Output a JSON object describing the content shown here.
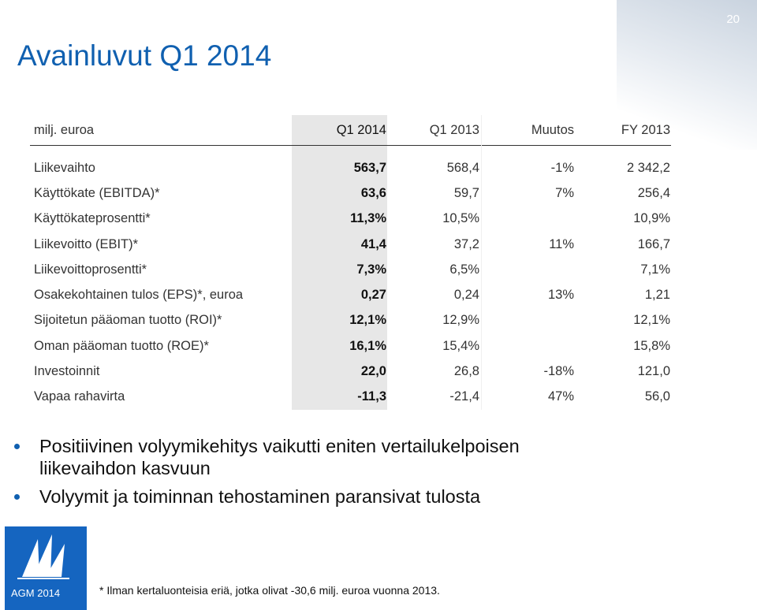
{
  "page_number": "20",
  "title": "Avainluvut Q1 2014",
  "table": {
    "header": {
      "label": "milj. euroa",
      "q1_2014": "Q1 2014",
      "q1_2013": "Q1 2013",
      "change": "Muutos",
      "fy_2013": "FY 2013"
    },
    "rows": [
      {
        "label": "Liikevaihto",
        "q1_2014": "563,7",
        "q1_2013": "568,4",
        "change": "-1%",
        "fy_2013": "2 342,2"
      },
      {
        "label": "Käyttökate (EBITDA)*",
        "q1_2014": "63,6",
        "q1_2013": "59,7",
        "change": "7%",
        "fy_2013": "256,4"
      },
      {
        "label": "Käyttökateprosentti*",
        "q1_2014": "11,3%",
        "q1_2013": "10,5%",
        "change": "",
        "fy_2013": "10,9%"
      },
      {
        "label": "Liikevoitto (EBIT)*",
        "q1_2014": "41,4",
        "q1_2013": "37,2",
        "change": "11%",
        "fy_2013": "166,7"
      },
      {
        "label": "Liikevoittoprosentti*",
        "q1_2014": "7,3%",
        "q1_2013": "6,5%",
        "change": "",
        "fy_2013": "7,1%"
      },
      {
        "label": "Osakekohtainen tulos (EPS)*, euroa",
        "q1_2014": "0,27",
        "q1_2013": "0,24",
        "change": "13%",
        "fy_2013": "1,21"
      },
      {
        "label": "Sijoitetun pääoman tuotto (ROI)*",
        "q1_2014": "12,1%",
        "q1_2013": "12,9%",
        "change": "",
        "fy_2013": "12,1%"
      },
      {
        "label": "Oman pääoman  tuotto (ROE)*",
        "q1_2014": "16,1%",
        "q1_2013": "15,4%",
        "change": "",
        "fy_2013": "15,8%"
      },
      {
        "label": "Investoinnit",
        "q1_2014": "22,0",
        "q1_2013": "26,8",
        "change": "-18%",
        "fy_2013": "121,0"
      },
      {
        "label": "Vapaa rahavirta",
        "q1_2014": "-11,3",
        "q1_2013": "-21,4",
        "change": "47%",
        "fy_2013": "56,0"
      }
    ]
  },
  "bullets": [
    "Positiivinen volyymikehitys vaikutti eniten vertailukelpoisen liikevaihdon kasvuun",
    "Volyymit ja toiminnan tehostaminen paransivat tulosta"
  ],
  "logo": {
    "label": "AGM 2014",
    "color": "#1565c0",
    "icon": "sailboat-logo-icon"
  },
  "footnote": "* Ilman kertaluonteisia eriä, jotka olivat -30,6 milj. euroa vuonna 2013.",
  "colors": {
    "title": "#1060b0",
    "accent": "#1565c0",
    "highlight_column": "#e7e7e7"
  }
}
